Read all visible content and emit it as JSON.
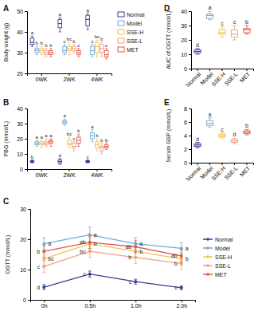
{
  "chart_data": [
    {
      "type": "box",
      "title": "A",
      "y_label": "Body weight (g)",
      "categories": [
        "0WK",
        "2WK",
        "4WK"
      ],
      "ylim": [
        20,
        50
      ],
      "yticks": [
        20,
        30,
        40,
        50
      ],
      "legend": "right",
      "series": [
        {
          "name": "Normal",
          "color": "#3b3b98",
          "values": [
            [
              33,
              34,
              35,
              37,
              38
            ],
            [
              40,
              42,
              44,
              46,
              47
            ],
            [
              41,
              43,
              46,
              48,
              49
            ]
          ],
          "annotations": [
            "a",
            "a",
            "a"
          ]
        },
        {
          "name": "Model",
          "color": "#74a9d8",
          "values": [
            [
              29,
              30,
              31,
              32,
              33
            ],
            [
              29,
              30,
              31,
              33,
              34
            ],
            [
              28,
              29,
              31,
              33,
              34
            ]
          ],
          "annotations": [
            "b",
            "c",
            "c"
          ]
        },
        {
          "name": "SSE-H",
          "color": "#f2c14e",
          "values": [
            [
              29,
              30,
              31,
              32,
              33
            ],
            [
              29,
              31,
              32,
              33,
              35
            ],
            [
              28,
              30,
              33,
              35,
              36
            ]
          ],
          "annotations": [
            "b",
            "bc",
            "bc"
          ]
        },
        {
          "name": "SSE-L",
          "color": "#f59f80",
          "values": [
            [
              28,
              29,
              30,
              31,
              32
            ],
            [
              30,
              31,
              32,
              33,
              34
            ],
            [
              28,
              30,
              32,
              34,
              35
            ]
          ],
          "annotations": [
            "b",
            "b",
            "b"
          ]
        },
        {
          "name": "MET",
          "color": "#e05a47",
          "values": [
            [
              28,
              29,
              30,
              31,
              32
            ],
            [
              28,
              29,
              30,
              31,
              32
            ],
            [
              27,
              28,
              29,
              31,
              32
            ]
          ],
          "annotations": [
            "b",
            "c",
            "c"
          ]
        }
      ]
    },
    {
      "type": "box",
      "title": "B",
      "y_label": "FBG (mmol/L)",
      "categories": [
        "0WK",
        "2WK",
        "4WK"
      ],
      "ylim": [
        0,
        40
      ],
      "yticks": [
        0,
        10,
        20,
        30,
        40
      ],
      "series": [
        {
          "name": "Normal",
          "color": "#3b3b98",
          "values": [
            [
              4,
              4.5,
              5,
              5.5,
              6
            ],
            [
              3,
              4,
              5,
              6,
              7
            ],
            [
              4,
              4.5,
              5,
              5.5,
              6
            ]
          ],
          "annotations": [
            "b",
            "d",
            "c"
          ]
        },
        {
          "name": "Model",
          "color": "#74a9d8",
          "values": [
            [
              15,
              16,
              17,
              18,
              19
            ],
            [
              29,
              30,
              31,
              32,
              33
            ],
            [
              18,
              20,
              22,
              24,
              26
            ]
          ],
          "annotations": [
            "a",
            "a",
            "a"
          ]
        },
        {
          "name": "SSE-H",
          "color": "#f2c14e",
          "values": [
            [
              14,
              16,
              17,
              18,
              19
            ],
            [
              14,
              16,
              17,
              19,
              21
            ],
            [
              12,
              14,
              16,
              18,
              20
            ]
          ],
          "annotations": [
            "a",
            "bc",
            "b"
          ]
        },
        {
          "name": "SSE-L",
          "color": "#f59f80",
          "values": [
            [
              15,
              16,
              17,
              18,
              20
            ],
            [
              12,
              14,
              15,
              17,
              18
            ],
            [
              10,
              12,
              14,
              15,
              17
            ]
          ],
          "annotations": [
            "a",
            "c",
            "b"
          ]
        },
        {
          "name": "MET",
          "color": "#e05a47",
          "values": [
            [
              15,
              17,
              18,
              19,
              20
            ],
            [
              15,
              17,
              19,
              21,
              23
            ],
            [
              13,
              14,
              15,
              16,
              17
            ]
          ],
          "annotations": [
            "a",
            "b",
            "b"
          ]
        }
      ]
    },
    {
      "type": "line",
      "title": "C",
      "y_label": "OGTT (mmol/L)",
      "categories": [
        "0h",
        "0.5h",
        "1.0h",
        "2.0h"
      ],
      "ylim": [
        0,
        30
      ],
      "yticks": [
        0,
        10,
        20,
        30
      ],
      "legend": "right",
      "marker": "circle",
      "series": [
        {
          "name": "Normal",
          "color": "#3b3b98",
          "values": [
            4.2,
            8.5,
            6.0,
            4.0
          ],
          "errors": [
            0.8,
            1.0,
            0.8,
            0.6
          ],
          "annotations": [
            "d",
            "c",
            "c",
            "c"
          ]
        },
        {
          "name": "Model",
          "color": "#74a9d8",
          "values": [
            18.5,
            21.5,
            18.5,
            17.0
          ],
          "errors": [
            2.0,
            2.5,
            2.0,
            2.0
          ],
          "annotations": [
            "a",
            "a",
            "a",
            "a"
          ]
        },
        {
          "name": "SSE-H",
          "color": "#f2c14e",
          "values": [
            13.5,
            18.5,
            16.0,
            13.5
          ],
          "errors": [
            2.0,
            2.0,
            2.0,
            2.0
          ],
          "annotations": [
            "bc",
            "b",
            "b",
            "b"
          ]
        },
        {
          "name": "SSE-L",
          "color": "#f59f80",
          "values": [
            11.0,
            16.0,
            14.0,
            12.0
          ],
          "errors": [
            2.0,
            2.0,
            2.0,
            2.0
          ],
          "annotations": [
            "c",
            "bc",
            "b",
            "b"
          ]
        },
        {
          "name": "MET",
          "color": "#e05a47",
          "values": [
            16.0,
            19.0,
            17.5,
            14.5
          ],
          "errors": [
            2.0,
            2.0,
            2.0,
            2.0
          ],
          "annotations": [
            "b",
            "ab",
            "ab",
            "ab"
          ]
        }
      ]
    },
    {
      "type": "box",
      "title": "D",
      "y_label": "AUC of OGTT (mmol/L)",
      "categories": [
        "Normal",
        "Model",
        "SSE-H",
        "SSE-L",
        "MET"
      ],
      "ylim": [
        0,
        40
      ],
      "yticks": [
        0,
        10,
        20,
        30,
        40
      ],
      "values": [
        [
          10,
          11,
          12,
          13,
          14
        ],
        [
          34,
          35,
          37,
          38,
          40
        ],
        [
          22,
          24,
          25,
          27,
          29
        ],
        [
          20,
          22,
          24,
          27,
          30
        ],
        [
          24,
          25,
          27,
          28,
          30
        ]
      ],
      "colors": [
        "#3b3b98",
        "#74a9d8",
        "#f2c14e",
        "#f59f80",
        "#e05a47"
      ],
      "annotations": [
        "d",
        "a",
        "c",
        "c",
        "b"
      ]
    },
    {
      "type": "box",
      "title": "E",
      "y_label": "Serum GSP (mmol/L)",
      "categories": [
        "Normal",
        "Model",
        "SSE-H",
        "SSE-L",
        "MET"
      ],
      "ylim": [
        0,
        8
      ],
      "yticks": [
        0,
        2,
        4,
        6,
        8
      ],
      "values": [
        [
          2.2,
          2.4,
          2.6,
          2.8,
          3.0
        ],
        [
          5.2,
          5.5,
          5.8,
          6.2,
          6.6
        ],
        [
          3.6,
          3.8,
          4.0,
          4.2,
          4.4
        ],
        [
          2.8,
          3.0,
          3.2,
          3.4,
          3.6
        ],
        [
          4.1,
          4.3,
          4.5,
          4.7,
          4.9
        ]
      ],
      "colors": [
        "#3b3b98",
        "#74a9d8",
        "#f2c14e",
        "#f59f80",
        "#e05a47"
      ],
      "annotations": [
        "d",
        "a",
        "c",
        "d",
        "b"
      ]
    }
  ]
}
